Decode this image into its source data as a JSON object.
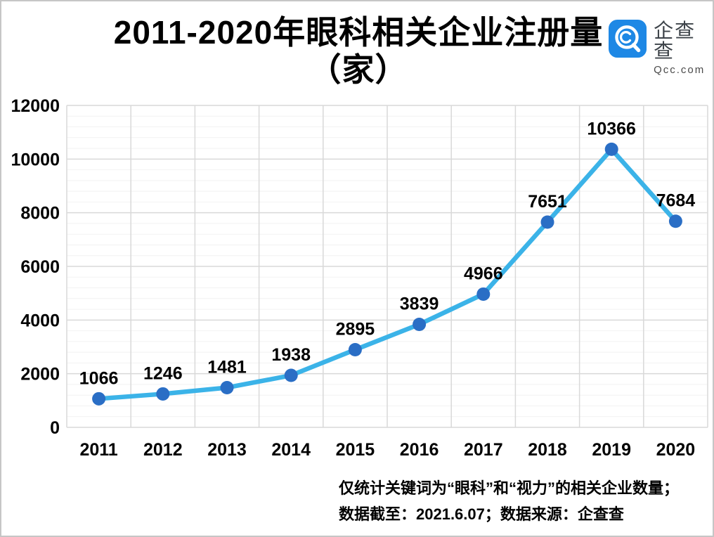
{
  "header": {
    "title_line1": "2011-2020年眼科相关企业注册量",
    "title_line2": "（家）",
    "logo": {
      "brand_cn": "企查查",
      "brand_domain": "Qcc.com",
      "brand_color": "#1E88E5"
    }
  },
  "chart_data": {
    "type": "line",
    "title": "2011-2020年眼科相关企业注册量（家）",
    "categories": [
      "2011",
      "2012",
      "2013",
      "2014",
      "2015",
      "2016",
      "2017",
      "2018",
      "2019",
      "2020"
    ],
    "values": [
      1066,
      1246,
      1481,
      1938,
      2895,
      3839,
      4966,
      7651,
      10366,
      7684
    ],
    "xlabel": "",
    "ylabel": "",
    "ylim": [
      0,
      12000
    ],
    "ytick_step": 2000,
    "ytick_minor_step": 400,
    "grid": "on",
    "legend": "none",
    "line_color": "#3BB3E8",
    "marker_color": "#2A6EC5",
    "grid_major_color": "#D9D9D9",
    "grid_minor_color": "#F2F2F2"
  },
  "footer": {
    "note_line1": "仅统计关键词为“眼科”和“视力”的相关企业数量；",
    "note_line2": "数据截至：2021.6.07；数据来源：企查查"
  }
}
